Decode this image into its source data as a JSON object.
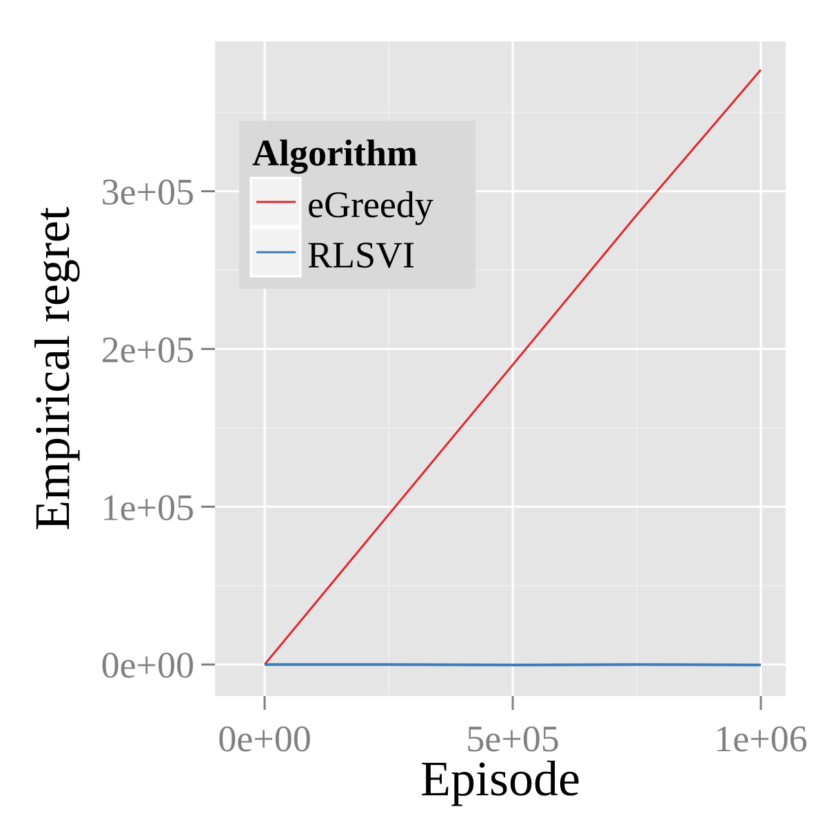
{
  "chart_data": {
    "type": "line",
    "xlabel": "Episode",
    "ylabel": "Empirical regret",
    "xlim": [
      -100000,
      1050000
    ],
    "ylim": [
      -20000,
      395000
    ],
    "x_ticks": [
      {
        "value": 0,
        "label": "0e+00"
      },
      {
        "value": 500000,
        "label": "5e+05"
      },
      {
        "value": 1000000,
        "label": "1e+06"
      }
    ],
    "y_ticks": [
      {
        "value": 0,
        "label": "0e+00"
      },
      {
        "value": 100000,
        "label": "1e+05"
      },
      {
        "value": 200000,
        "label": "2e+05"
      },
      {
        "value": 300000,
        "label": "3e+05"
      }
    ],
    "grid": true,
    "legend": {
      "title": "Algorithm",
      "placement": "top-left inside"
    },
    "series": [
      {
        "name": "eGreedy",
        "color": "#e0282e",
        "x": [
          0,
          250000,
          500000,
          750000,
          1000000
        ],
        "y": [
          0,
          95000,
          190000,
          285000,
          377000
        ]
      },
      {
        "name": "RLSVI",
        "color": "#3a7dbd",
        "x": [
          0,
          250000,
          500000,
          750000,
          1000000
        ],
        "y": [
          0,
          0,
          -300,
          0,
          -300
        ]
      }
    ]
  }
}
